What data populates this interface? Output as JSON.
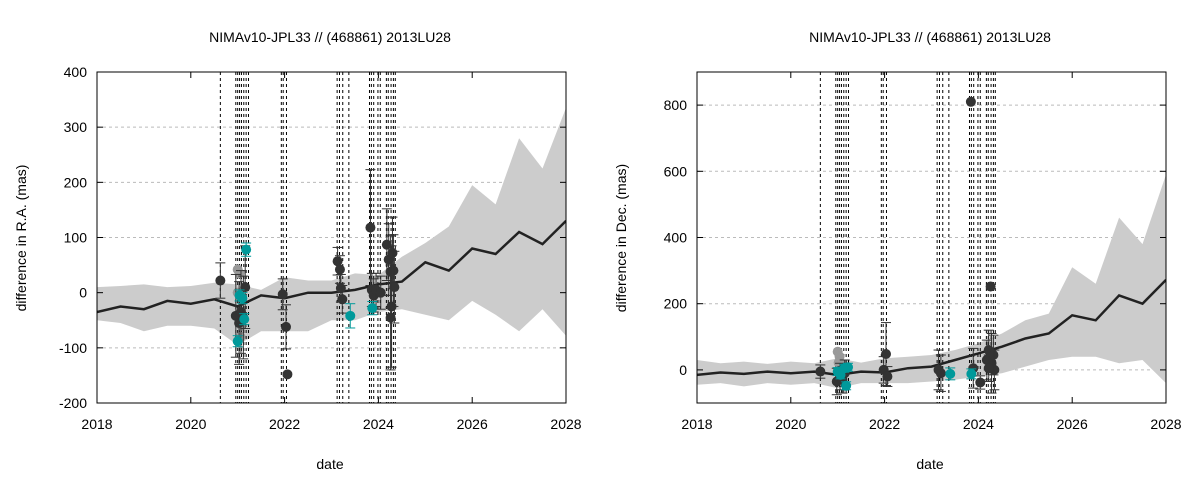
{
  "chart_data": [
    {
      "type": "line",
      "title": "NIMAv10-JPL33 // (468861) 2013LU28",
      "xlabel": "date",
      "ylabel": "difference in R.A. (mas)",
      "xlim": [
        2018,
        2028
      ],
      "ylim": [
        -200,
        400
      ],
      "xticks": [
        "2018",
        "2020",
        "2022",
        "2024",
        "2026",
        "2028"
      ],
      "yticks": [
        "-200",
        "-100",
        "0",
        "100",
        "200",
        "300",
        "400"
      ],
      "grid": true,
      "colors": {
        "band": "#cccccc",
        "line": "#222222",
        "points": "#333333",
        "gaia": "#00999a",
        "gray_points": "#999999",
        "epoch_lines": "#000000"
      },
      "epochs": [
        2020.63,
        2020.96,
        2021.0,
        2021.04,
        2021.08,
        2021.13,
        2021.18,
        2021.23,
        2021.93,
        2021.97,
        2022.04,
        2023.12,
        2023.17,
        2023.24,
        2023.37,
        2023.81,
        2023.85,
        2023.9,
        2023.99,
        2024.04,
        2024.17,
        2024.21,
        2024.27,
        2024.32,
        2024.36
      ],
      "band": {
        "x": [
          2018.0,
          2018.5,
          2019.0,
          2019.5,
          2020.0,
          2020.5,
          2021.0,
          2021.5,
          2022.0,
          2022.5,
          2023.0,
          2023.5,
          2024.0,
          2024.5,
          2025.0,
          2025.5,
          2026.0,
          2026.5,
          2027.0,
          2027.5,
          2028.0
        ],
        "upper": [
          10,
          12,
          15,
          10,
          12,
          18,
          15,
          5,
          28,
          22,
          22,
          35,
          32,
          65,
          90,
          120,
          195,
          160,
          280,
          225,
          335
        ],
        "lower": [
          -50,
          -55,
          -70,
          -60,
          -60,
          -65,
          -95,
          -70,
          -70,
          -70,
          -50,
          -50,
          -35,
          -30,
          -40,
          -50,
          -15,
          -40,
          -70,
          -30,
          -78
        ]
      },
      "series": [
        {
          "x": [
            2018.0,
            2018.5,
            2019.0,
            2019.5,
            2020.0,
            2020.5,
            2021.0,
            2021.5,
            2022.0,
            2022.5,
            2023.0,
            2023.5,
            2024.0,
            2024.5,
            2025.0,
            2025.5,
            2026.0,
            2026.5,
            2027.0,
            2027.5,
            2028.0
          ],
          "values": [
            -35,
            -25,
            -30,
            -15,
            -20,
            -12,
            -25,
            -5,
            -10,
            0,
            0,
            5,
            15,
            20,
            55,
            40,
            80,
            70,
            110,
            88,
            130
          ]
        }
      ],
      "points": [
        {
          "x": 2020.63,
          "y": 22,
          "err": 32
        },
        {
          "x": 2020.96,
          "y": -42,
          "err": 75
        },
        {
          "x": 2021.03,
          "y": -55,
          "err": 75
        },
        {
          "x": 2021.07,
          "y": -35,
          "err": 75
        },
        {
          "x": 2021.12,
          "y": -45,
          "err": 75
        },
        {
          "x": 2021.16,
          "y": 10,
          "err": 75
        },
        {
          "x": 2021.96,
          "y": -3,
          "err": 28
        },
        {
          "x": 2022.03,
          "y": -62,
          "err": 40
        },
        {
          "x": 2022.06,
          "y": -148,
          "err": 0
        },
        {
          "x": 2023.13,
          "y": 57,
          "err": 25
        },
        {
          "x": 2023.18,
          "y": 42,
          "err": 25
        },
        {
          "x": 2023.2,
          "y": 8,
          "err": 25
        },
        {
          "x": 2023.23,
          "y": -12,
          "err": 25
        },
        {
          "x": 2023.83,
          "y": 118,
          "err": 105
        },
        {
          "x": 2023.86,
          "y": 5,
          "err": 30
        },
        {
          "x": 2023.9,
          "y": -5,
          "err": 30
        },
        {
          "x": 2023.95,
          "y": 5,
          "err": 30
        },
        {
          "x": 2024.05,
          "y": 0,
          "err": 30
        },
        {
          "x": 2024.18,
          "y": 87,
          "err": 65
        },
        {
          "x": 2024.22,
          "y": 60,
          "err": 65
        },
        {
          "x": 2024.26,
          "y": 38,
          "err": 65
        },
        {
          "x": 2024.28,
          "y": -25,
          "err": 110
        },
        {
          "x": 2024.3,
          "y": 72,
          "err": 65
        },
        {
          "x": 2024.32,
          "y": 40,
          "err": 65
        },
        {
          "x": 2024.34,
          "y": 10,
          "err": 65
        },
        {
          "x": 2024.26,
          "y": -45,
          "err": 95
        }
      ],
      "gray_points": [
        {
          "x": 2021.0,
          "y": 42
        },
        {
          "x": 2021.04,
          "y": 35
        },
        {
          "x": 2021.0,
          "y": 0
        },
        {
          "x": 2021.08,
          "y": -60
        },
        {
          "x": 2021.06,
          "y": -80
        }
      ],
      "gaia_points": [
        {
          "x": 2021.0,
          "y": -88,
          "err": 10
        },
        {
          "x": 2021.04,
          "y": -5,
          "err": 10
        },
        {
          "x": 2021.1,
          "y": -10,
          "err": 10
        },
        {
          "x": 2021.14,
          "y": -48,
          "err": 10
        },
        {
          "x": 2021.18,
          "y": 78,
          "err": 12
        },
        {
          "x": 2023.4,
          "y": -42,
          "err": 22
        },
        {
          "x": 2023.87,
          "y": -28,
          "err": 12
        }
      ]
    },
    {
      "type": "line",
      "title": "NIMAv10-JPL33 // (468861) 2013LU28",
      "xlabel": "date",
      "ylabel": "difference in Dec. (mas)",
      "xlim": [
        2018,
        2028
      ],
      "ylim": [
        -100,
        900
      ],
      "xticks": [
        "2018",
        "2020",
        "2022",
        "2024",
        "2026",
        "2028"
      ],
      "yticks": [
        "0",
        "200",
        "400",
        "600",
        "800"
      ],
      "grid": true,
      "colors": {
        "band": "#cccccc",
        "line": "#222222",
        "points": "#333333",
        "gaia": "#00999a",
        "gray_points": "#999999",
        "epoch_lines": "#000000"
      },
      "epochs": [
        2020.63,
        2020.96,
        2021.0,
        2021.04,
        2021.08,
        2021.13,
        2021.18,
        2021.23,
        2021.93,
        2021.97,
        2022.04,
        2023.12,
        2023.17,
        2023.24,
        2023.37,
        2023.81,
        2023.85,
        2023.9,
        2023.99,
        2024.04,
        2024.17,
        2024.21,
        2024.27,
        2024.32,
        2024.36
      ],
      "band": {
        "x": [
          2018.0,
          2018.5,
          2019.0,
          2019.5,
          2020.0,
          2020.5,
          2021.0,
          2021.5,
          2022.0,
          2022.5,
          2023.0,
          2023.5,
          2024.0,
          2024.5,
          2025.0,
          2025.5,
          2026.0,
          2026.5,
          2027.0,
          2027.5,
          2028.0
        ],
        "upper": [
          30,
          20,
          25,
          18,
          25,
          20,
          35,
          22,
          35,
          40,
          45,
          60,
          80,
          110,
          150,
          170,
          310,
          260,
          460,
          380,
          590
        ],
        "lower": [
          -45,
          -40,
          -50,
          -40,
          -45,
          -40,
          -55,
          -40,
          -40,
          -40,
          -35,
          -30,
          -20,
          -10,
          10,
          30,
          40,
          40,
          20,
          30,
          -40
        ]
      },
      "series": [
        {
          "x": [
            2018.0,
            2018.5,
            2019.0,
            2019.5,
            2020.0,
            2020.5,
            2021.0,
            2021.5,
            2022.0,
            2022.5,
            2023.0,
            2023.5,
            2024.0,
            2024.5,
            2025.0,
            2025.5,
            2026.0,
            2026.5,
            2027.0,
            2027.5,
            2028.0
          ],
          "values": [
            -15,
            -8,
            -12,
            -5,
            -10,
            -5,
            -15,
            -5,
            -8,
            5,
            10,
            30,
            50,
            70,
            95,
            110,
            165,
            150,
            225,
            200,
            272
          ]
        }
      ],
      "points": [
        {
          "x": 2020.63,
          "y": -5,
          "err": 20
        },
        {
          "x": 2020.98,
          "y": -35,
          "err": 40
        },
        {
          "x": 2021.05,
          "y": -20,
          "err": 40
        },
        {
          "x": 2021.1,
          "y": -30,
          "err": 40
        },
        {
          "x": 2021.15,
          "y": -10,
          "err": 40
        },
        {
          "x": 2021.98,
          "y": 0,
          "err": 40
        },
        {
          "x": 2022.03,
          "y": 48,
          "err": 95
        },
        {
          "x": 2022.06,
          "y": -20,
          "err": 30
        },
        {
          "x": 2023.15,
          "y": 0,
          "err": 60
        },
        {
          "x": 2023.2,
          "y": -10,
          "err": 55
        },
        {
          "x": 2023.84,
          "y": 810,
          "err": 0
        },
        {
          "x": 2023.89,
          "y": 5,
          "err": 60
        },
        {
          "x": 2024.04,
          "y": -38,
          "err": 20
        },
        {
          "x": 2024.18,
          "y": 30,
          "err": 60
        },
        {
          "x": 2024.22,
          "y": 60,
          "err": 60
        },
        {
          "x": 2024.26,
          "y": 252,
          "err": 0
        },
        {
          "x": 2024.28,
          "y": 20,
          "err": 90
        },
        {
          "x": 2024.32,
          "y": 45,
          "err": 60
        },
        {
          "x": 2024.34,
          "y": 0,
          "err": 60
        },
        {
          "x": 2024.22,
          "y": 5,
          "err": 40
        }
      ],
      "gray_points": [
        {
          "x": 2021.0,
          "y": 55
        },
        {
          "x": 2021.04,
          "y": 40
        },
        {
          "x": 2021.02,
          "y": 22
        },
        {
          "x": 2021.08,
          "y": 15
        }
      ],
      "gaia_points": [
        {
          "x": 2021.0,
          "y": -5,
          "err": 12
        },
        {
          "x": 2021.06,
          "y": -15,
          "err": 12
        },
        {
          "x": 2021.14,
          "y": 5,
          "err": 12
        },
        {
          "x": 2021.18,
          "y": -48,
          "err": 12
        },
        {
          "x": 2021.22,
          "y": 8,
          "err": 12
        },
        {
          "x": 2023.4,
          "y": -12,
          "err": 18
        },
        {
          "x": 2023.85,
          "y": -12,
          "err": 15
        }
      ]
    }
  ]
}
